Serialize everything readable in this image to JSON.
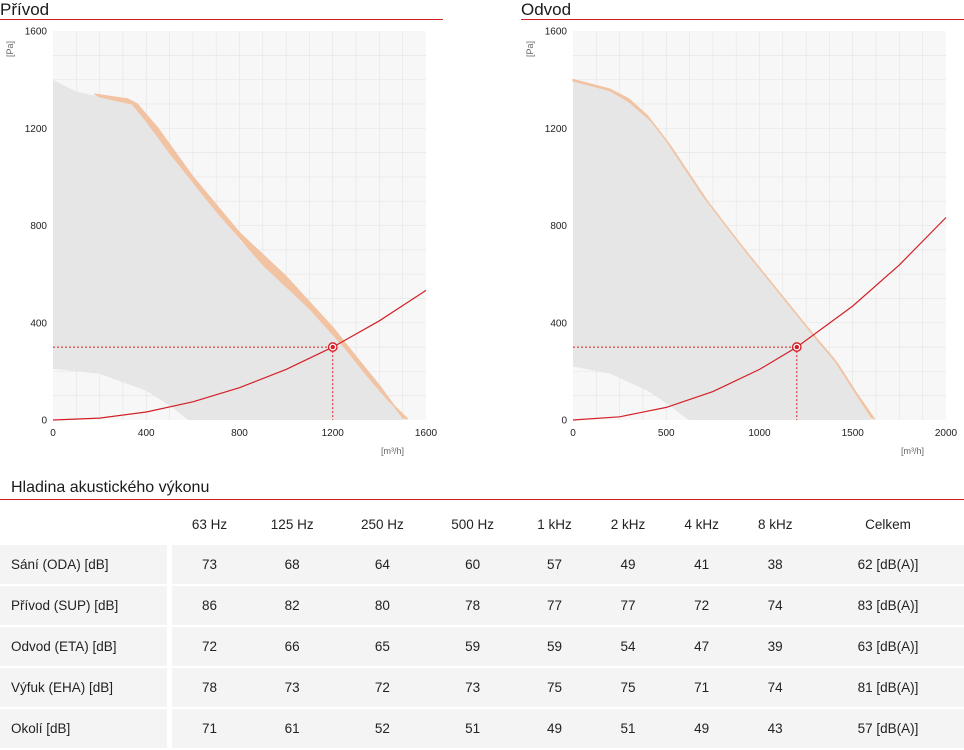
{
  "charts_header": {
    "supply_title": "Přívod",
    "exhaust_title": "Odvod",
    "accent_color": "#d32027",
    "curve_color": "#f2c3a2",
    "area_color": "#e6e6e6"
  },
  "chart_data": [
    {
      "type": "line",
      "title": "Přívod",
      "xlabel": "[m³/h]",
      "ylabel": "[Pa]",
      "xlim": [
        0,
        1600
      ],
      "ylim": [
        0,
        1600
      ],
      "xticks": [
        "0",
        "400",
        "800",
        "1200",
        "1600"
      ],
      "yticks": [
        "0",
        "400",
        "800",
        "1200",
        "1600"
      ],
      "grid": true,
      "fan_curve": {
        "x": [
          180,
          320,
          360,
          450,
          600,
          800,
          1000,
          1200,
          1300,
          1400,
          1500
        ],
        "y": [
          1340,
          1320,
          1300,
          1200,
          1000,
          770,
          590,
          380,
          260,
          140,
          10
        ]
      },
      "fan_band_lower": {
        "x": [
          200,
          340,
          400,
          500,
          700,
          900,
          1100,
          1250,
          1350,
          1440,
          1520
        ],
        "y": [
          1330,
          1300,
          1230,
          1100,
          860,
          640,
          460,
          300,
          180,
          80,
          5
        ]
      },
      "operating_area_upper": {
        "x": [
          0,
          100,
          200,
          300,
          340,
          500,
          800,
          1000,
          1200,
          1300,
          1400,
          1510
        ],
        "y": [
          1400,
          1350,
          1330,
          1320,
          1300,
          1110,
          740,
          560,
          370,
          260,
          150,
          0
        ]
      },
      "operating_area_lower": {
        "x": [
          0,
          200,
          400,
          500,
          580
        ],
        "y": [
          210,
          190,
          120,
          60,
          0
        ]
      },
      "system_curve": {
        "x": [
          0,
          200,
          400,
          600,
          800,
          1000,
          1200,
          1400,
          1600
        ],
        "y": [
          0,
          8,
          33,
          75,
          133,
          208,
          300,
          408,
          533
        ]
      },
      "operating_point": {
        "x": 1200,
        "y": 300
      }
    },
    {
      "type": "line",
      "title": "Odvod",
      "xlabel": "[m³/h]",
      "ylabel": "[Pa]",
      "xlim": [
        0,
        2000
      ],
      "ylim": [
        0,
        1600
      ],
      "xticks": [
        "0",
        "500",
        "1000",
        "1500",
        "2000"
      ],
      "yticks": [
        "0",
        "400",
        "800",
        "1200",
        "1600"
      ],
      "grid": true,
      "fan_curve": {
        "x": [
          0,
          100,
          200,
          300,
          400,
          500,
          700,
          900,
          1100,
          1300,
          1400,
          1500,
          1600
        ],
        "y": [
          1400,
          1380,
          1360,
          1320,
          1250,
          1150,
          920,
          720,
          530,
          340,
          250,
          130,
          10
        ]
      },
      "fan_band_lower": {
        "x": [
          0,
          100,
          200,
          300,
          420,
          520,
          720,
          920,
          1120,
          1320,
          1420,
          1520,
          1615
        ],
        "y": [
          1395,
          1375,
          1355,
          1310,
          1230,
          1130,
          900,
          700,
          510,
          320,
          230,
          110,
          5
        ]
      },
      "operating_area_upper": {
        "x": [
          0,
          100,
          200,
          300,
          400,
          500,
          700,
          900,
          1100,
          1300,
          1400,
          1500,
          1600
        ],
        "y": [
          1400,
          1380,
          1360,
          1320,
          1250,
          1150,
          920,
          720,
          530,
          340,
          250,
          130,
          0
        ]
      },
      "operating_area_lower": {
        "x": [
          0,
          200,
          400,
          500,
          620
        ],
        "y": [
          220,
          190,
          120,
          70,
          0
        ]
      },
      "system_curve": {
        "x": [
          0,
          250,
          500,
          750,
          1000,
          1200,
          1500,
          1750,
          2000
        ],
        "y": [
          0,
          13,
          52,
          117,
          208,
          300,
          469,
          638,
          833
        ]
      },
      "operating_point": {
        "x": 1200,
        "y": 300
      }
    }
  ],
  "sound": {
    "title": "Hladina akustického výkonu",
    "columns": [
      "63 Hz",
      "125 Hz",
      "250 Hz",
      "500 Hz",
      "1 kHz",
      "2 kHz",
      "4 kHz",
      "8 kHz",
      "Celkem"
    ],
    "rows": [
      {
        "label": "Sání (ODA) [dB]",
        "values": [
          "73",
          "68",
          "64",
          "60",
          "57",
          "49",
          "41",
          "38",
          "62 [dB(A)]"
        ]
      },
      {
        "label": "Přívod (SUP) [dB]",
        "values": [
          "86",
          "82",
          "80",
          "78",
          "77",
          "77",
          "72",
          "74",
          "83 [dB(A)]"
        ]
      },
      {
        "label": "Odvod (ETA) [dB]",
        "values": [
          "72",
          "66",
          "65",
          "59",
          "59",
          "54",
          "47",
          "39",
          "63 [dB(A)]"
        ]
      },
      {
        "label": "Výfuk (EHA) [dB]",
        "values": [
          "78",
          "73",
          "72",
          "73",
          "75",
          "75",
          "71",
          "74",
          "81 [dB(A)]"
        ]
      },
      {
        "label": "Okolí [dB]",
        "values": [
          "71",
          "61",
          "52",
          "51",
          "49",
          "51",
          "49",
          "43",
          "57 [dB(A)]"
        ]
      }
    ]
  }
}
